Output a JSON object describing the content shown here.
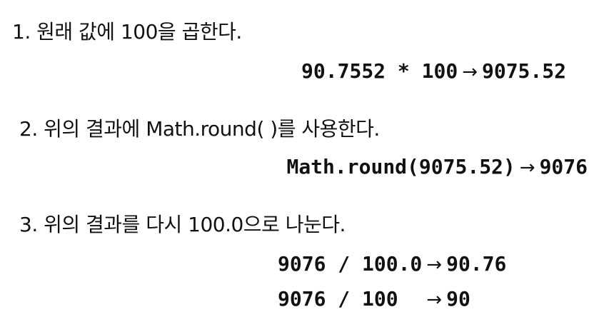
{
  "steps": [
    {
      "text": "1. 원래 값에 100을 곱한다.",
      "lines": [
        {
          "expr": "90.7552 * 100",
          "arrow": "→",
          "result": "9075.52"
        }
      ]
    },
    {
      "text": "2. 위의 결과에 Math.round( )를 사용한다.",
      "lines": [
        {
          "expr": "Math.round(9075.52)",
          "arrow": "→",
          "result": "9076"
        }
      ]
    },
    {
      "text": "3. 위의 결과를 다시 100.0으로 나눈다.",
      "lines": [
        {
          "expr": "9076 / 100.0",
          "arrow": "→",
          "result": "90.76"
        },
        {
          "expr": "9076 / 100  ",
          "arrow": "→",
          "result": "90"
        }
      ]
    }
  ]
}
